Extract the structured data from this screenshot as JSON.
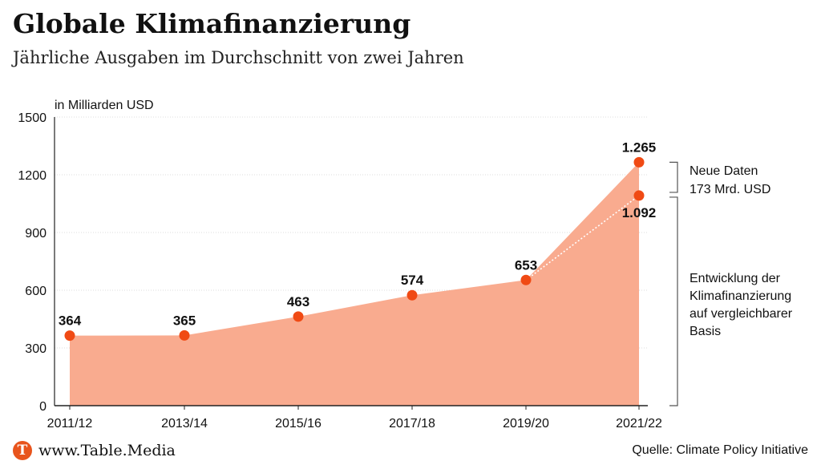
{
  "header": {
    "title": "Globale Klimafinanzierung",
    "subtitle": "Jährliche Ausgaben im Durchschnitt von zwei Jahren"
  },
  "footer": {
    "brand_text": "www.Table.Media",
    "brand_letter": "T",
    "source": "Quelle: Climate Policy Initiative"
  },
  "colors": {
    "area": "#f9ab8f",
    "marker": "#f04a14",
    "axis": "#222222",
    "grid": "#dddddd",
    "brand": "#e8541c"
  },
  "chart_data": {
    "type": "area",
    "ylabel": "in Milliarden USD",
    "ylim": [
      0,
      1500
    ],
    "yticks": [
      0,
      300,
      600,
      900,
      1200,
      1500
    ],
    "grid": true,
    "categories": [
      "2011/12",
      "2013/14",
      "2015/16",
      "2017/18",
      "2019/20",
      "2021/22"
    ],
    "series": [
      {
        "values": [
          364,
          365,
          463,
          574,
          653,
          1265
        ],
        "labels": [
          "364",
          "365",
          "463",
          "574",
          "653",
          "1.265"
        ]
      }
    ],
    "comparable_basis": {
      "from_category": "2019/20",
      "to_category": "2021/22",
      "from_value": 653,
      "to_value": 1092,
      "label": "1.092"
    },
    "annotations": {
      "new_data": [
        "Neue Daten",
        "173 Mrd. USD"
      ],
      "comparable": [
        "Entwicklung der",
        "Klimafinanzierung",
        "auf vergleichbarer",
        "Basis"
      ]
    }
  }
}
